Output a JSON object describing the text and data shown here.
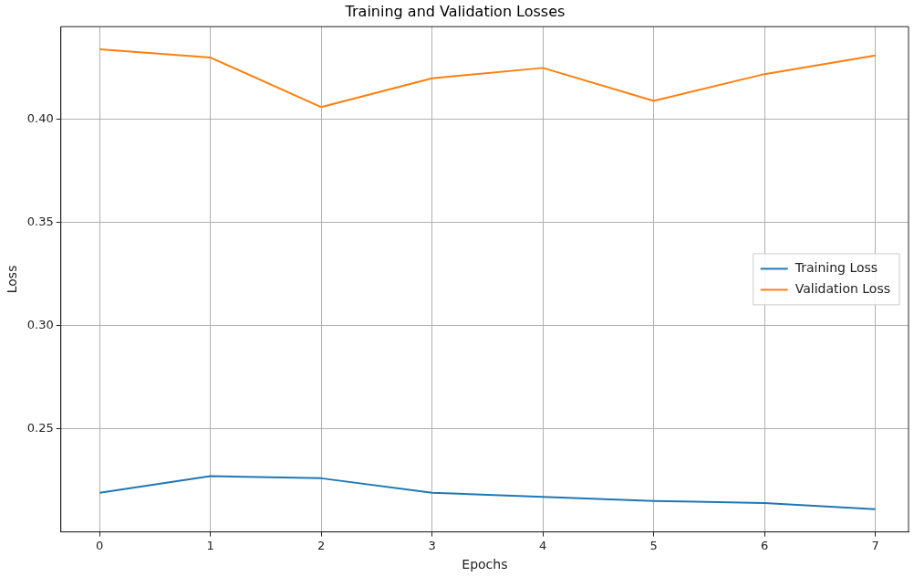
{
  "chart_data": {
    "type": "line",
    "title": "Training and Validation Losses",
    "xlabel": "Epochs",
    "ylabel": "Loss",
    "x": [
      0,
      1,
      2,
      3,
      4,
      5,
      6,
      7
    ],
    "series": [
      {
        "name": "Training Loss",
        "color": "#1f77b4",
        "values": [
          0.219,
          0.227,
          0.226,
          0.219,
          0.217,
          0.215,
          0.214,
          0.211
        ]
      },
      {
        "name": "Validation Loss",
        "color": "#ff7f0e",
        "values": [
          0.434,
          0.43,
          0.406,
          0.42,
          0.425,
          0.409,
          0.422,
          0.431
        ]
      }
    ],
    "xlim": [
      -0.35,
      7.3
    ],
    "xticks": [
      0,
      1,
      2,
      3,
      4,
      5,
      6,
      7
    ],
    "ylim": [
      0.2,
      0.445
    ],
    "yticks": [
      {
        "value": 0.25,
        "label": "0.25"
      },
      {
        "value": 0.3,
        "label": "0.30"
      },
      {
        "value": 0.35,
        "label": "0.35"
      },
      {
        "value": 0.4,
        "label": "0.40"
      }
    ],
    "grid": true,
    "legend": "center right",
    "marker": "none",
    "line_style": "solid"
  }
}
